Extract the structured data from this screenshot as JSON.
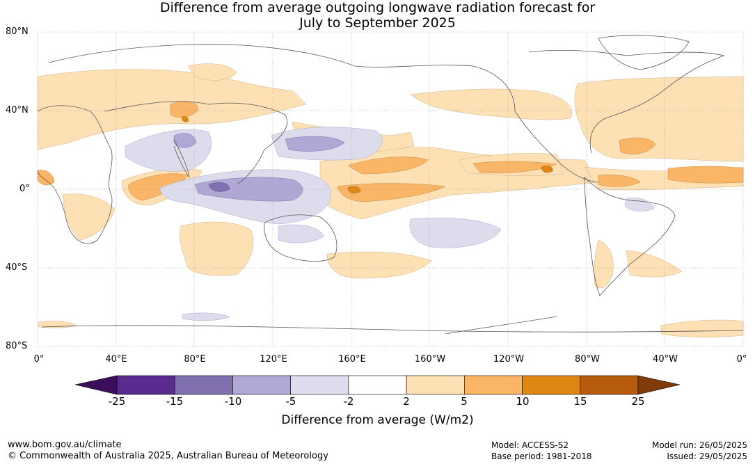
{
  "title_line1": "Difference from average outgoing longwave radiation forecast for",
  "title_line2": "July to September 2025",
  "lat_labels": [
    "80°N",
    "40°N",
    "0°",
    "40°S",
    "80°S"
  ],
  "lon_labels": [
    "0°",
    "40°E",
    "80°E",
    "120°E",
    "160°E",
    "160°W",
    "120°W",
    "80°W",
    "40°W",
    "0°"
  ],
  "colorbar": {
    "title": "Difference from average (W/m2)",
    "labels": [
      "-25",
      "-15",
      "-10",
      "-5",
      "-2",
      "2",
      "5",
      "10",
      "15",
      "25"
    ],
    "colors": [
      "#3b0f5c",
      "#5a2a8e",
      "#8170b0",
      "#b0a8d4",
      "#dcdcec",
      "#ffffff",
      "#fde1b4",
      "#fbb566",
      "#e08613",
      "#b65c0c",
      "#7f3b08"
    ]
  },
  "footer": {
    "website": "www.bom.gov.au/climate",
    "copyright": "© Commonwealth of Australia 2025, Australian Bureau of Meteorology",
    "model": "Model: ACCESS-S2",
    "base_period": "Base period: 1981-2018",
    "model_run": "Model run: 26/05/2025",
    "issued": "Issued: 29/05/2025"
  }
}
